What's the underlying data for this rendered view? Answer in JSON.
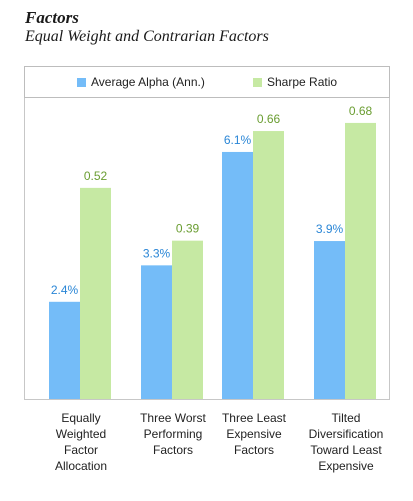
{
  "title": "Factors",
  "subtitle": "Equal Weight and Contrarian Factors",
  "colors": {
    "alpha": "#74bcf8",
    "sharpe": "#c6e9a3",
    "alpha_label": "#2a86d6",
    "sharpe_label": "#6a9d31"
  },
  "chart_data": {
    "type": "bar",
    "categories": [
      "Equally Weighted Factor Allocation",
      "Three Worst Performing Factors",
      "Three Least Expensive Factors",
      "Tilted Diversification Toward Least Expensive"
    ],
    "category_lines": [
      [
        "Equally",
        "Weighted",
        "Factor",
        "Allocation"
      ],
      [
        "Three Worst",
        "Performing",
        "Factors"
      ],
      [
        "Three Least",
        "Expensive",
        "Factors"
      ],
      [
        "Tilted",
        "Diversification",
        "Toward Least",
        "Expensive"
      ]
    ],
    "series": [
      {
        "name": "Average Alpha (Ann.)",
        "values": [
          2.4,
          3.3,
          6.1,
          3.9
        ],
        "labels": [
          "2.4%",
          "3.3%",
          "6.1%",
          "3.9%"
        ]
      },
      {
        "name": "Sharpe Ratio",
        "values": [
          0.52,
          0.39,
          0.66,
          0.68
        ],
        "labels": [
          "0.52",
          "0.39",
          "0.66",
          "0.68"
        ]
      }
    ],
    "legend_position": "top",
    "grid": false
  }
}
